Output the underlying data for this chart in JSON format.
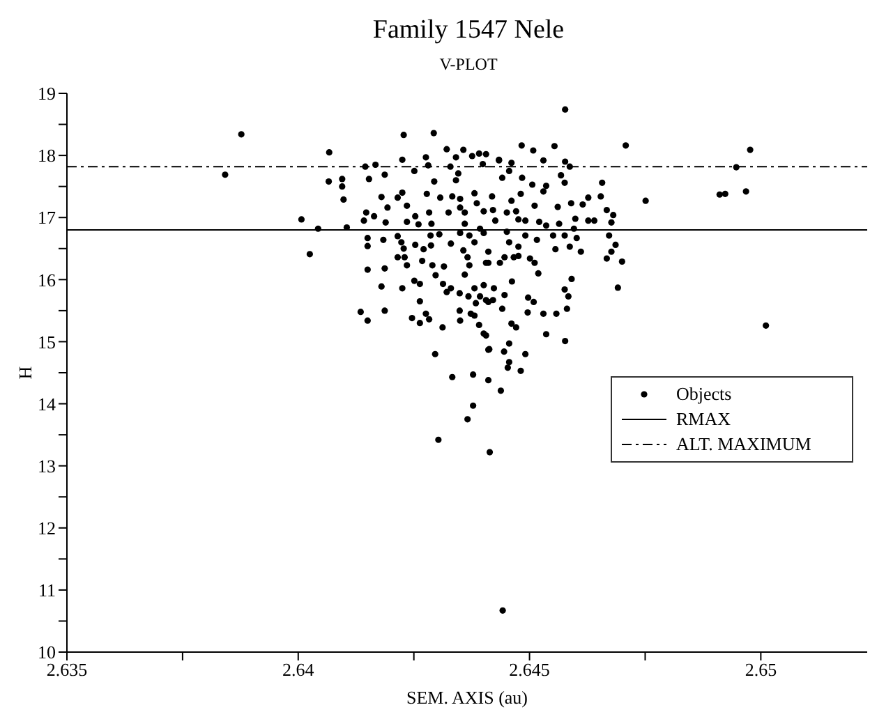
{
  "chart_data": {
    "type": "scatter",
    "title": "Family 1547 Nele",
    "subtitle": "V-PLOT",
    "xlabel": "SEM. AXIS (au)",
    "ylabel": "H",
    "xlim": [
      2.635,
      2.6523
    ],
    "xticks": [
      2.635,
      {
        "value": 2.6375,
        "label": null
      },
      2.64,
      {
        "value": 2.6425,
        "label": null
      },
      2.645,
      {
        "value": 2.6475,
        "label": null
      },
      2.65
    ],
    "ylim": [
      10,
      19
    ],
    "yticks": [
      10,
      {
        "value": 10.5,
        "label": null
      },
      11,
      {
        "value": 11.5,
        "label": null
      },
      12,
      {
        "value": 12.5,
        "label": null
      },
      13,
      {
        "value": 13.5,
        "label": null
      },
      14,
      {
        "value": 14.5,
        "label": null
      },
      15,
      {
        "value": 15.5,
        "label": null
      },
      16,
      {
        "value": 16.5,
        "label": null
      },
      17,
      {
        "value": 17.5,
        "label": null
      },
      18,
      {
        "value": 18.5,
        "label": null
      },
      19
    ],
    "grid": false,
    "legend": "right",
    "marker": "circle",
    "ref_lines": [
      {
        "axis": "y",
        "value": 16.8,
        "label": "RMAX",
        "color": "#000000",
        "line_style": "solid"
      },
      {
        "axis": "y",
        "value": 17.82,
        "label": "ALT. MAXIMUM",
        "color": "#000000",
        "line_style": "dashdot"
      }
    ],
    "series": [
      {
        "name": "Objects",
        "color": "#000000",
        "x": [
          2.63877,
          2.63842,
          2.64007,
          2.64043,
          2.64025,
          2.64067,
          2.64066,
          2.64095,
          2.64095,
          2.64098,
          2.64105,
          2.64228,
          2.64293,
          2.64145,
          2.64167,
          2.64153,
          2.64187,
          2.64225,
          2.64251,
          2.64276,
          2.64281,
          2.64294,
          2.64321,
          2.64341,
          2.64357,
          2.64376,
          2.64391,
          2.64406,
          2.64399,
          2.64434,
          2.64329,
          2.64346,
          2.64341,
          2.6418,
          2.64215,
          2.64225,
          2.64193,
          2.64235,
          2.64147,
          2.64142,
          2.64164,
          2.64189,
          2.64235,
          2.64253,
          2.6426,
          2.64283,
          2.64288,
          2.64278,
          2.64307,
          2.64333,
          2.6435,
          2.64325,
          2.6435,
          2.6436,
          2.64381,
          2.64386,
          2.64401,
          2.64421,
          2.6436,
          2.6435,
          2.6437,
          2.64381,
          2.64393,
          2.6415,
          2.6415,
          2.64184,
          2.64215,
          2.64223,
          2.64228,
          2.64253,
          2.64271,
          2.64286,
          2.64287,
          2.64305,
          2.6433,
          2.64357,
          2.64215,
          2.6423,
          2.64235,
          2.64268,
          2.6429,
          2.64366,
          2.6437,
          2.64406,
          2.6415,
          2.64187,
          2.64297,
          2.64315,
          2.6436,
          2.6418,
          2.64225,
          2.64251,
          2.64263,
          2.64313,
          2.6433,
          2.64321,
          2.64349,
          2.64368,
          2.64381,
          2.64401,
          2.64393,
          2.64406,
          2.64423,
          2.64263,
          2.64384,
          2.64135,
          2.6415,
          2.64187,
          2.64246,
          2.64263,
          2.64276,
          2.64283,
          2.64349,
          2.64373,
          2.6435,
          2.64381,
          2.64312,
          2.64391,
          2.64401,
          2.64296,
          2.64413,
          2.64333,
          2.64378,
          2.64411,
          2.64708,
          2.64577,
          2.64483,
          2.64508,
          2.64554,
          2.6453,
          2.64577,
          2.64587,
          2.64434,
          2.64461,
          2.64456,
          2.64441,
          2.64568,
          2.64576,
          2.64484,
          2.64506,
          2.64536,
          2.6453,
          2.64657,
          2.64627,
          2.64654,
          2.64751,
          2.64481,
          2.64461,
          2.64419,
          2.64511,
          2.64561,
          2.6459,
          2.64615,
          2.64667,
          2.64681,
          2.64426,
          2.64451,
          2.64471,
          2.64476,
          2.64491,
          2.64521,
          2.64536,
          2.64564,
          2.64599,
          2.64627,
          2.6464,
          2.64677,
          2.64596,
          2.64401,
          2.64451,
          2.64491,
          2.64516,
          2.64551,
          2.64556,
          2.64576,
          2.64587,
          2.64602,
          2.64672,
          2.64686,
          2.64677,
          2.64667,
          2.647,
          2.64611,
          2.64456,
          2.64476,
          2.64411,
          2.64411,
          2.64436,
          2.64446,
          2.64466,
          2.64476,
          2.64501,
          2.64511,
          2.64519,
          2.64591,
          2.64691,
          2.64576,
          2.64584,
          2.64581,
          2.6453,
          2.64558,
          2.64497,
          2.64509,
          2.64462,
          2.64446,
          2.64421,
          2.64441,
          2.64496,
          2.64411,
          2.64461,
          2.64471,
          2.64406,
          2.64536,
          2.64577,
          2.64411,
          2.64445,
          2.64456,
          2.64491,
          2.64456,
          2.64453,
          2.64481,
          2.64438,
          2.64378,
          2.64366,
          2.64303,
          2.64414,
          2.64442,
          2.64977,
          2.64947,
          2.64968,
          2.64911,
          2.64923,
          2.65011
        ],
        "values": [
          18.34,
          17.69,
          16.97,
          16.82,
          16.41,
          18.05,
          17.58,
          17.62,
          17.5,
          17.29,
          16.84,
          18.33,
          18.36,
          17.82,
          17.85,
          17.62,
          17.69,
          17.93,
          17.75,
          17.97,
          17.84,
          17.58,
          18.1,
          17.97,
          18.09,
          17.99,
          18.03,
          18.02,
          17.86,
          17.93,
          17.82,
          17.71,
          17.6,
          17.33,
          17.32,
          17.4,
          17.16,
          17.19,
          17.08,
          16.95,
          17.02,
          16.92,
          16.93,
          17.02,
          16.89,
          17.08,
          16.9,
          17.38,
          17.32,
          17.34,
          17.3,
          17.08,
          17.16,
          17.08,
          17.39,
          17.23,
          17.1,
          17.12,
          16.9,
          16.75,
          16.71,
          16.6,
          16.82,
          16.67,
          16.54,
          16.64,
          16.7,
          16.6,
          16.5,
          16.56,
          16.49,
          16.71,
          16.55,
          16.73,
          16.58,
          16.47,
          16.36,
          16.36,
          16.23,
          16.3,
          16.23,
          16.36,
          16.23,
          16.27,
          16.16,
          16.18,
          16.07,
          16.21,
          16.08,
          15.89,
          15.86,
          15.98,
          15.93,
          15.93,
          15.86,
          15.8,
          15.78,
          15.73,
          15.86,
          15.91,
          15.73,
          15.67,
          15.86,
          15.65,
          15.62,
          15.48,
          15.34,
          15.5,
          15.38,
          15.3,
          15.45,
          15.36,
          15.5,
          15.45,
          15.34,
          15.42,
          15.23,
          15.27,
          15.13,
          14.8,
          14.88,
          14.43,
          14.47,
          14.38,
          18.16,
          18.74,
          18.16,
          18.08,
          18.15,
          17.92,
          17.9,
          17.82,
          17.92,
          17.88,
          17.75,
          17.64,
          17.68,
          17.56,
          17.64,
          17.53,
          17.51,
          17.42,
          17.56,
          17.32,
          17.34,
          17.27,
          17.38,
          17.27,
          17.34,
          17.19,
          17.17,
          17.23,
          17.21,
          17.12,
          17.04,
          16.95,
          17.08,
          17.1,
          16.97,
          16.95,
          16.93,
          16.87,
          16.9,
          16.98,
          16.95,
          16.95,
          16.92,
          16.82,
          16.75,
          16.77,
          16.71,
          16.64,
          16.71,
          16.49,
          16.71,
          16.53,
          16.67,
          16.71,
          16.56,
          16.45,
          16.34,
          16.29,
          16.45,
          16.6,
          16.53,
          16.45,
          16.27,
          16.27,
          16.36,
          16.36,
          16.38,
          16.34,
          16.27,
          16.1,
          16.01,
          15.87,
          15.84,
          15.73,
          15.53,
          15.45,
          15.45,
          15.71,
          15.64,
          15.97,
          15.75,
          15.67,
          15.53,
          15.47,
          15.64,
          15.29,
          15.23,
          15.1,
          15.12,
          15.01,
          14.87,
          14.84,
          14.97,
          14.8,
          14.67,
          14.58,
          14.53,
          14.21,
          13.97,
          13.75,
          13.42,
          13.22,
          10.67,
          18.09,
          17.81,
          17.42,
          17.37,
          17.38,
          15.26
        ]
      }
    ]
  }
}
